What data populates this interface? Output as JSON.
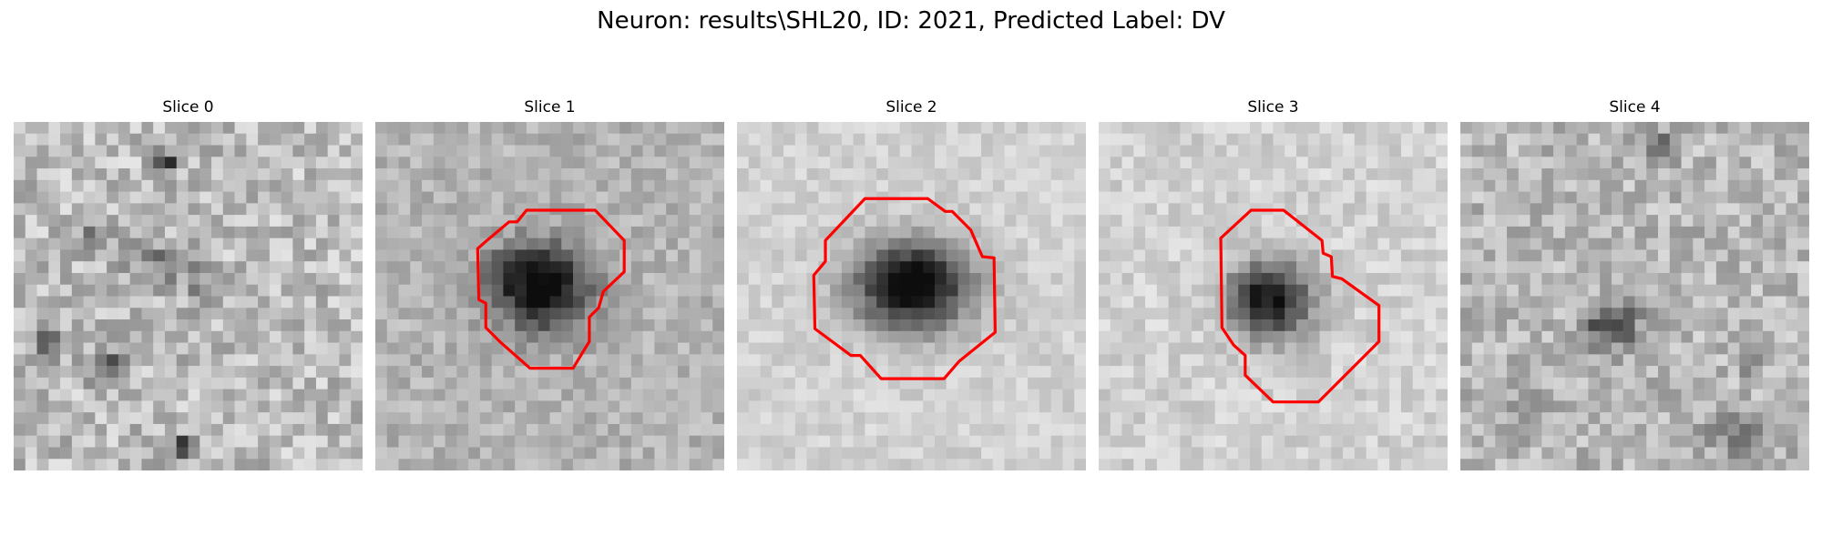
{
  "figure": {
    "title": "Neuron: results\\SHL20, ID: 2021, Predicted Label: DV"
  },
  "colors": {
    "contour": "#ff0000",
    "background": "#ffffff"
  },
  "slices": [
    {
      "title": "Slice 0",
      "has_contour": false
    },
    {
      "title": "Slice 1",
      "has_contour": true
    },
    {
      "title": "Slice 2",
      "has_contour": true
    },
    {
      "title": "Slice 3",
      "has_contour": true
    },
    {
      "title": "Slice 4",
      "has_contour": false
    }
  ]
}
